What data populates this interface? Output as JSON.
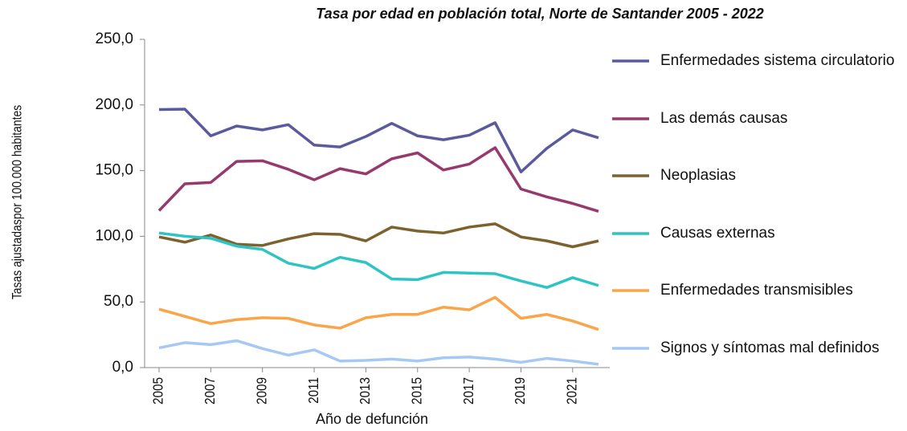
{
  "chart_data": {
    "type": "line",
    "title": "Tasa por edad en población total, Norte de Santander 2005 - 2022",
    "xlabel": "Año de defunción",
    "ylabel": "Tasas ajustadaspor 100.000 habitantes",
    "x": [
      2005,
      2006,
      2007,
      2008,
      2009,
      2010,
      2011,
      2012,
      2013,
      2014,
      2015,
      2016,
      2017,
      2018,
      2019,
      2020,
      2021,
      2022
    ],
    "xlim": [
      2005,
      2022
    ],
    "xticks": [
      2005,
      2007,
      2009,
      2011,
      2013,
      2015,
      2017,
      2019,
      2021
    ],
    "ylim": [
      0,
      250
    ],
    "yticks": [
      {
        "value": 0,
        "label": "0,0"
      },
      {
        "value": 50,
        "label": "50,0"
      },
      {
        "value": 100,
        "label": "100,0"
      },
      {
        "value": 150,
        "label": "150,0"
      },
      {
        "value": 200,
        "label": "200,0"
      },
      {
        "value": 250,
        "label": "250,0"
      }
    ],
    "legend": "right",
    "series": [
      {
        "name": "Enfermedades sistema circulatorio",
        "color": "#5b5a9c",
        "values": [
          196.5,
          196.8,
          176.5,
          184,
          181,
          185,
          169.5,
          168,
          176,
          186,
          176.5,
          173.5,
          177,
          186.5,
          149,
          167,
          181,
          175
        ]
      },
      {
        "name": "Las demás causas",
        "color": "#963a6e",
        "values": [
          119.5,
          140,
          141,
          157,
          157.5,
          151,
          143,
          151.5,
          147.5,
          159,
          163.5,
          150.5,
          155,
          167.5,
          136,
          130,
          125,
          119
        ]
      },
      {
        "name": "Neoplasias",
        "color": "#7d6230",
        "values": [
          99.5,
          95.5,
          101,
          94,
          93,
          98,
          102,
          101.5,
          96.5,
          107,
          104,
          102.5,
          107,
          109.5,
          99.5,
          96.5,
          92,
          96.5
        ]
      },
      {
        "name": "Causas externas",
        "color": "#2ec4c4",
        "values": [
          102.5,
          100,
          98.5,
          92.5,
          90,
          79.5,
          75.5,
          84,
          80,
          67.5,
          67,
          72.5,
          72,
          71.5,
          66,
          61,
          68.5,
          62.5
        ]
      },
      {
        "name": "Enfermedades transmisibles",
        "color": "#f9a54a",
        "values": [
          44.5,
          39,
          33.5,
          36.5,
          38,
          37.5,
          32.5,
          30,
          38,
          40.5,
          40.5,
          46,
          44,
          53.5,
          37.5,
          40.5,
          35.5,
          29
        ]
      },
      {
        "name": "Signos y síntomas mal definidos",
        "color": "#a6c8f5",
        "values": [
          15,
          19,
          17.5,
          20.5,
          14.5,
          9.5,
          13.5,
          5,
          5.5,
          6.5,
          5,
          7.5,
          8,
          6.5,
          4,
          7,
          5,
          2.5
        ]
      }
    ]
  }
}
